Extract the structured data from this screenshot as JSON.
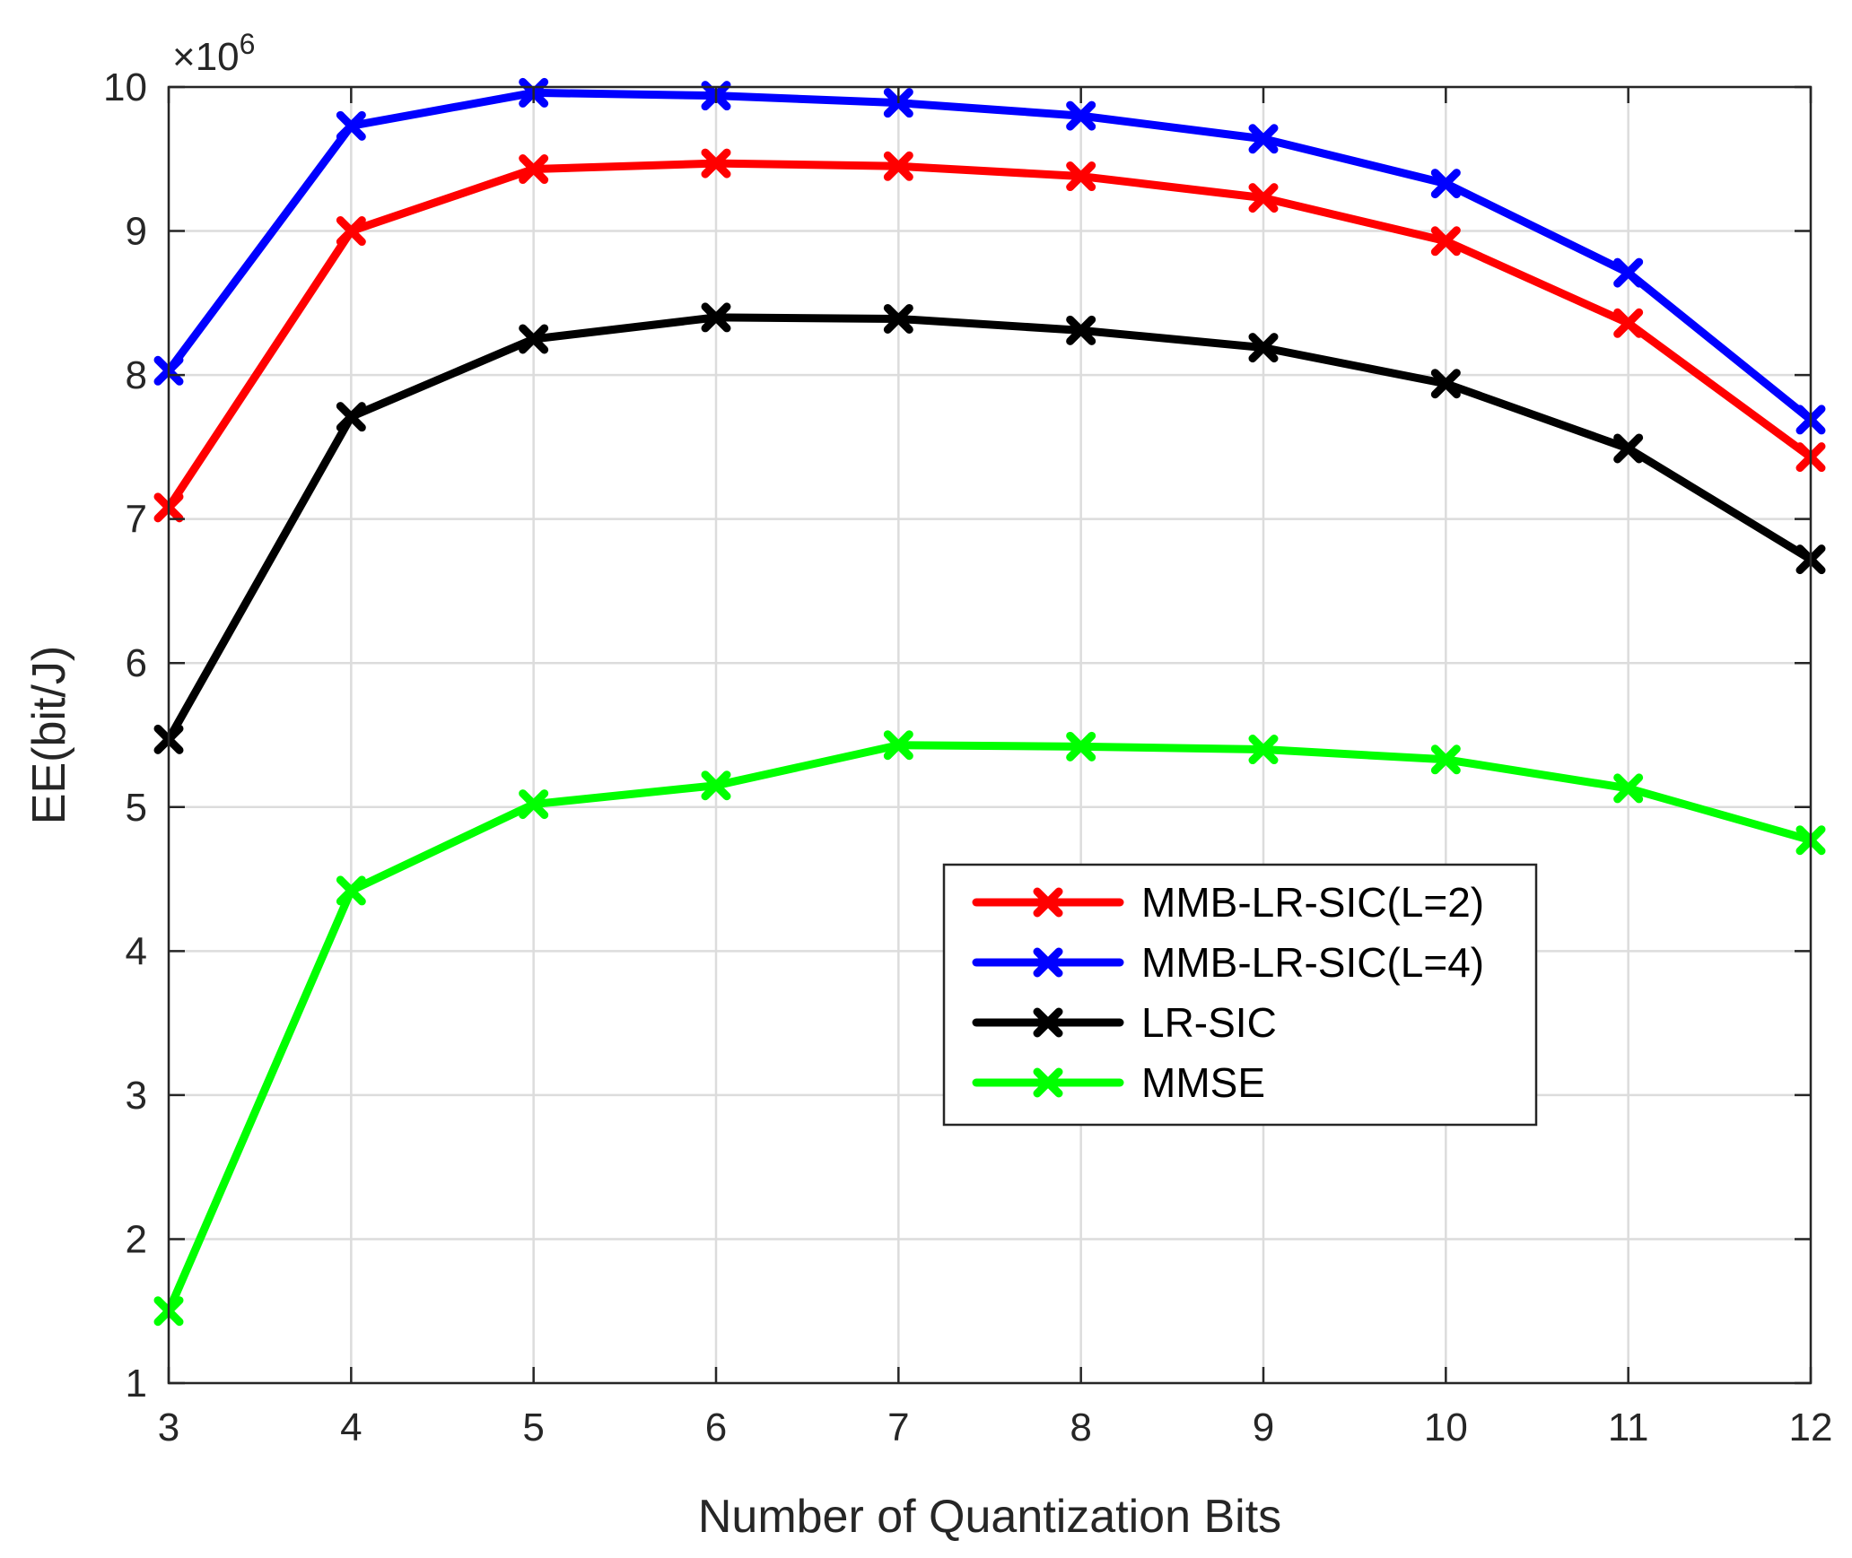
{
  "chart_data": {
    "type": "line",
    "title": "",
    "xlabel": "Number of Quantization Bits",
    "ylabel": "EE(bit/J)",
    "y_multiplier": {
      "base": "×10",
      "exponent": "6"
    },
    "x": [
      3,
      4,
      5,
      6,
      7,
      8,
      9,
      10,
      11,
      12
    ],
    "xlim": [
      3,
      12
    ],
    "ylim": [
      1,
      10
    ],
    "x_ticks": [
      "3",
      "4",
      "5",
      "6",
      "7",
      "8",
      "9",
      "10",
      "11",
      "12"
    ],
    "y_ticks": [
      "1",
      "2",
      "3",
      "4",
      "5",
      "6",
      "7",
      "8",
      "9",
      "10"
    ],
    "grid": true,
    "legend_position": "center-right",
    "series": [
      {
        "name": "MMB-LR-SIC(L=2)",
        "color": "#ff0000",
        "marker": "x",
        "values": [
          7.08,
          9.0,
          9.43,
          9.47,
          9.45,
          9.38,
          9.23,
          8.93,
          8.36,
          7.43
        ]
      },
      {
        "name": "MMB-LR-SIC(L=4)",
        "color": "#0000ff",
        "marker": "x",
        "values": [
          8.03,
          9.73,
          9.96,
          9.94,
          9.89,
          9.8,
          9.64,
          9.33,
          8.71,
          7.69
        ]
      },
      {
        "name": "LR-SIC",
        "color": "#000000",
        "marker": "x",
        "values": [
          5.47,
          7.71,
          8.25,
          8.4,
          8.39,
          8.31,
          8.19,
          7.94,
          7.49,
          6.72
        ]
      },
      {
        "name": "MMSE",
        "color": "#00ff00",
        "marker": "x",
        "values": [
          1.5,
          4.42,
          5.02,
          5.15,
          5.43,
          5.42,
          5.4,
          5.33,
          5.13,
          4.77
        ]
      }
    ]
  }
}
